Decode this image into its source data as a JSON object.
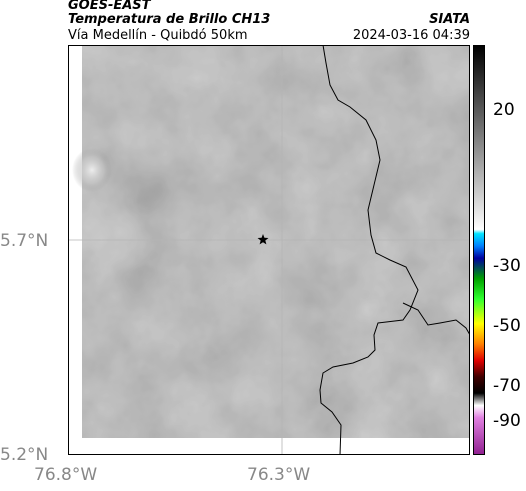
{
  "header": {
    "satellite": "GOES-EAST",
    "product": "Temperatura de Brillo CH13",
    "route": "Vía Medellín - Quibdó 50km",
    "agency": "SIATA",
    "datetime": "2024-03-16 04:39"
  },
  "map": {
    "lat_labels": [
      "5.7°N",
      "5.2°N"
    ],
    "lon_labels": [
      "76.8°W",
      "76.3°W"
    ],
    "marker": "star-marker",
    "colors": {
      "frame": "#000000",
      "gridline": "#b0b0b0",
      "coastline": "#000000",
      "field_base": "#8a8a8a",
      "warm_spot": "#e8e8e8"
    }
  },
  "colorbar": {
    "ticks": [
      "20",
      "-30",
      "-50",
      "-70",
      "-90"
    ]
  }
}
